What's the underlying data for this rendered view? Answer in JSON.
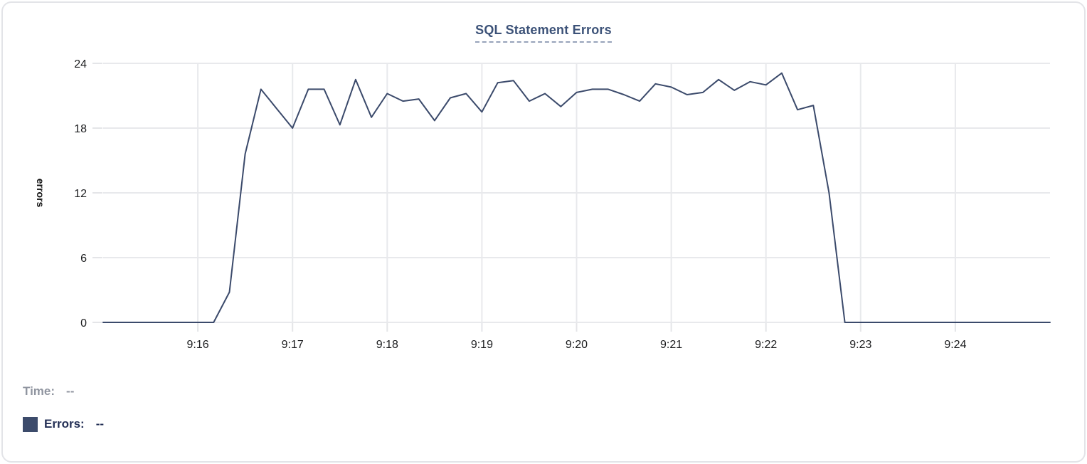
{
  "chart": {
    "title": "SQL Statement Errors"
  },
  "legend": {
    "time_label": "Time:",
    "time_value": "--",
    "errors_label": "Errors:",
    "errors_value": "--"
  },
  "colors": {
    "line": "#3b4a6b",
    "swatch": "#3c4b6b",
    "title": "#3c5278",
    "grid": "#e8e9ec",
    "tick_text": "#1b1c1e",
    "axis_title_text": "#111111",
    "legend_time": "#9095a0",
    "legend_errors": "#232f55",
    "card_border": "#e3e4e8"
  },
  "chart_data": {
    "type": "line",
    "title": "SQL Statement Errors",
    "xlabel": "",
    "ylabel": "errors",
    "ylim": [
      0,
      24
    ],
    "y_ticks": [
      0,
      6,
      12,
      18,
      24
    ],
    "x_tick_labels": [
      "9:16",
      "9:17",
      "9:18",
      "9:19",
      "9:20",
      "9:21",
      "9:22",
      "9:23",
      "9:24"
    ],
    "x_tick_indices": [
      6,
      12,
      18,
      24,
      30,
      36,
      42,
      48,
      54
    ],
    "interval_seconds": 10,
    "grid": true,
    "legend_position": "bottom-left",
    "x": [
      "9:15:00",
      "9:15:10",
      "9:15:20",
      "9:15:30",
      "9:15:40",
      "9:15:50",
      "9:16:00",
      "9:16:10",
      "9:16:20",
      "9:16:30",
      "9:16:40",
      "9:16:50",
      "9:17:00",
      "9:17:10",
      "9:17:20",
      "9:17:30",
      "9:17:40",
      "9:17:50",
      "9:18:00",
      "9:18:10",
      "9:18:20",
      "9:18:30",
      "9:18:40",
      "9:18:50",
      "9:19:00",
      "9:19:10",
      "9:19:20",
      "9:19:30",
      "9:19:40",
      "9:19:50",
      "9:20:00",
      "9:20:10",
      "9:20:20",
      "9:20:30",
      "9:20:40",
      "9:20:50",
      "9:21:00",
      "9:21:10",
      "9:21:20",
      "9:21:30",
      "9:21:40",
      "9:21:50",
      "9:22:00",
      "9:22:10",
      "9:22:20",
      "9:22:30",
      "9:22:40",
      "9:22:50",
      "9:23:00",
      "9:23:10",
      "9:23:20",
      "9:23:30",
      "9:23:40",
      "9:23:50",
      "9:24:00",
      "9:24:10",
      "9:24:20",
      "9:24:30",
      "9:24:40",
      "9:24:50",
      "9:25:00"
    ],
    "series": [
      {
        "name": "Errors",
        "color": "#3b4a6b",
        "values": [
          0,
          0,
          0,
          0,
          0,
          0,
          0,
          0,
          2.8,
          15.6,
          21.6,
          19.8,
          18,
          21.6,
          21.6,
          18.3,
          22.5,
          19,
          21.2,
          20.5,
          20.7,
          18.7,
          20.8,
          21.2,
          19.5,
          22.2,
          22.4,
          20.5,
          21.2,
          20,
          21.3,
          21.6,
          21.6,
          21.1,
          20.5,
          22.1,
          21.8,
          21.1,
          21.3,
          22.5,
          21.5,
          22.3,
          22,
          23.1,
          19.7,
          20.1,
          12,
          0,
          0,
          0,
          0,
          0,
          0,
          0,
          0,
          0,
          0,
          0,
          0,
          0,
          0
        ]
      }
    ]
  }
}
